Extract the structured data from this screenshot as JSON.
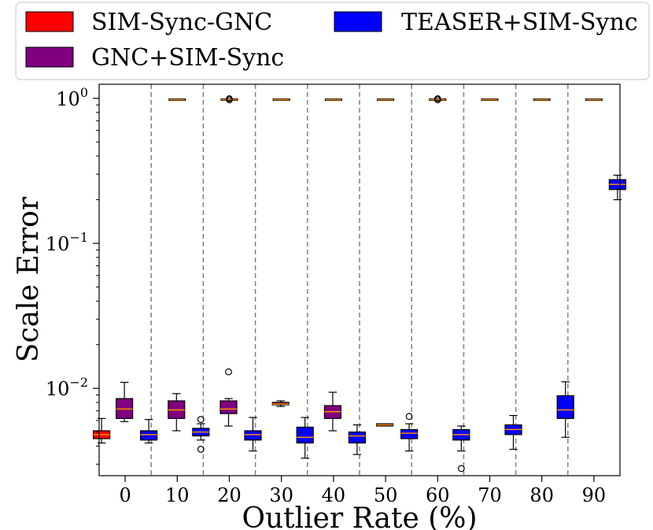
{
  "chart_data": {
    "type": "box",
    "title": "",
    "xlabel": "Outlier Rate (%)",
    "ylabel": "Scale Error",
    "yscale": "log",
    "ylim": [
      0.0025,
      1.25
    ],
    "categories": [
      "0",
      "10",
      "20",
      "30",
      "40",
      "50",
      "60",
      "70",
      "80",
      "90"
    ],
    "yticks": [
      {
        "value": 0.01,
        "base": "10",
        "exp": "−2"
      },
      {
        "value": 0.1,
        "base": "10",
        "exp": "−1"
      },
      {
        "value": 1,
        "base": "10",
        "exp": "0"
      }
    ],
    "legend_position": "top",
    "series": [
      {
        "name": "SIM-Sync-GNC",
        "color": "#ff0000",
        "boxes": [
          {
            "category": "0",
            "whislo": 0.0042,
            "q1": 0.0045,
            "med": 0.0048,
            "q3": 0.0051,
            "whishi": 0.0062,
            "fliers": []
          }
        ]
      },
      {
        "name": "GNC+SIM-Sync",
        "color": "#800080",
        "boxes": [
          {
            "category": "0",
            "whislo": 0.0059,
            "q1": 0.0062,
            "med": 0.0072,
            "q3": 0.0085,
            "whishi": 0.011,
            "fliers": []
          },
          {
            "category": "10",
            "whislo": 0.0051,
            "q1": 0.0062,
            "med": 0.0071,
            "q3": 0.0082,
            "whishi": 0.0092,
            "fliers": []
          },
          {
            "category": "20",
            "whislo": 0.0055,
            "q1": 0.0067,
            "med": 0.0072,
            "q3": 0.0082,
            "whishi": 0.0085,
            "fliers": [
              0.013
            ]
          },
          {
            "category": "30",
            "whislo": 0.0075,
            "q1": 0.0077,
            "med": 0.0078,
            "q3": 0.008,
            "whishi": 0.0082,
            "fliers": []
          },
          {
            "category": "40",
            "whislo": 0.0051,
            "q1": 0.0062,
            "med": 0.0069,
            "q3": 0.0076,
            "whishi": 0.0094,
            "fliers": []
          },
          {
            "category": "50",
            "whislo": 0.0055,
            "q1": 0.0055,
            "med": 0.0056,
            "q3": 0.0057,
            "whishi": 0.0057,
            "fliers": []
          }
        ]
      },
      {
        "name": "TEASER+SIM-Sync",
        "color": "#0000ff",
        "boxes": [
          {
            "category": "0",
            "whislo": 0.0042,
            "q1": 0.0044,
            "med": 0.0048,
            "q3": 0.0051,
            "whishi": 0.0061,
            "fliers": []
          },
          {
            "category": "10",
            "whislo": 0.0044,
            "q1": 0.0047,
            "med": 0.005,
            "q3": 0.0053,
            "whishi": 0.0057,
            "fliers": [
              0.0038,
              0.0061
            ]
          },
          {
            "category": "20",
            "whislo": 0.0037,
            "q1": 0.0044,
            "med": 0.0048,
            "q3": 0.0051,
            "whishi": 0.0063,
            "fliers": []
          },
          {
            "category": "30",
            "whislo": 0.0033,
            "q1": 0.0042,
            "med": 0.0046,
            "q3": 0.0054,
            "whishi": 0.0063,
            "fliers": []
          },
          {
            "category": "40",
            "whislo": 0.0035,
            "q1": 0.0042,
            "med": 0.0047,
            "q3": 0.005,
            "whishi": 0.0056,
            "fliers": []
          },
          {
            "category": "50",
            "whislo": 0.0037,
            "q1": 0.0045,
            "med": 0.0049,
            "q3": 0.0052,
            "whishi": 0.0057,
            "fliers": [
              0.0064
            ]
          },
          {
            "category": "60",
            "whislo": 0.0037,
            "q1": 0.0044,
            "med": 0.0048,
            "q3": 0.0052,
            "whishi": 0.0055,
            "fliers": [
              0.0028
            ]
          },
          {
            "category": "70",
            "whislo": 0.0038,
            "q1": 0.0048,
            "med": 0.0052,
            "q3": 0.0056,
            "whishi": 0.0065,
            "fliers": []
          },
          {
            "category": "80",
            "whislo": 0.0046,
            "q1": 0.0062,
            "med": 0.0071,
            "q3": 0.0089,
            "whishi": 0.0111,
            "fliers": []
          },
          {
            "category": "90",
            "whislo": 0.2,
            "q1": 0.235,
            "med": 0.255,
            "q3": 0.275,
            "whishi": 0.295,
            "fliers": []
          }
        ]
      }
    ],
    "top_markers": [
      {
        "category": "10",
        "value": 0.98,
        "color": "#ff8c00"
      },
      {
        "category": "20",
        "value": 0.98,
        "color": "#ff8c00",
        "fliers": [
          0.995,
          0.975
        ]
      },
      {
        "category": "30",
        "value": 0.98,
        "color": "#ff8c00"
      },
      {
        "category": "40",
        "value": 0.98,
        "color": "#ff8c00"
      },
      {
        "category": "50",
        "value": 0.98,
        "color": "#ff8c00"
      },
      {
        "category": "60",
        "value": 0.98,
        "color": "#ff8c00",
        "fliers": [
          0.995,
          0.975
        ]
      },
      {
        "category": "70",
        "value": 0.98,
        "color": "#ff8c00"
      },
      {
        "category": "80",
        "value": 0.98,
        "color": "#ff8c00"
      },
      {
        "category": "90",
        "value": 0.98,
        "color": "#ff8c00"
      }
    ],
    "median_color": "#ff8c00",
    "separator_style": "dashed",
    "grid": false
  }
}
